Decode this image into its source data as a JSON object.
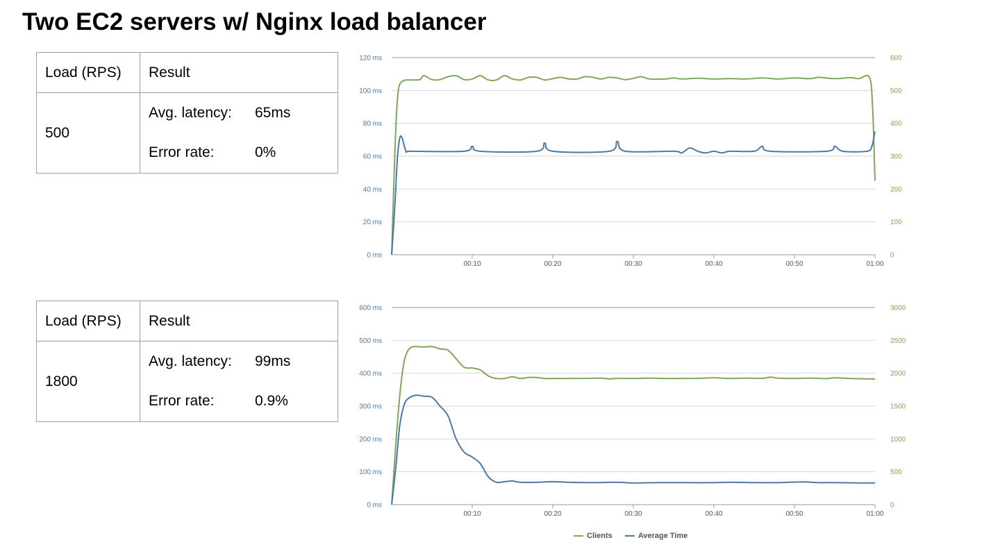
{
  "title": "Two EC2 servers w/ Nginx load balancer",
  "tables": [
    {
      "header_load": "Load (RPS)",
      "header_result": "Result",
      "load": "500",
      "latency_label": "Avg. latency:",
      "latency_value": "65ms",
      "error_label": "Error rate:",
      "error_value": "0%"
    },
    {
      "header_load": "Load (RPS)",
      "header_result": "Result",
      "load": "1800",
      "latency_label": "Avg. latency:",
      "latency_value": "99ms",
      "error_label": "Error rate:",
      "error_value": "0.9%"
    }
  ],
  "legend": [
    {
      "label": "Clients",
      "color": "#7fa65a"
    },
    {
      "label": "Average Time",
      "color": "#4a78a8"
    }
  ],
  "chart_data": [
    {
      "type": "line",
      "x_unit": "seconds",
      "x_ticks": [
        "00:10",
        "00:20",
        "00:30",
        "00:40",
        "00:50",
        "01:00"
      ],
      "xlim": [
        0,
        60
      ],
      "y_left": {
        "ticks": [
          "0 ms",
          "20 ms",
          "40 ms",
          "60 ms",
          "80 ms",
          "100 ms",
          "120 ms"
        ],
        "lim": [
          0,
          120
        ],
        "color": "#4a78a8"
      },
      "y_right": {
        "ticks": [
          "0",
          "100",
          "200",
          "300",
          "400",
          "500",
          "600"
        ],
        "lim": [
          0,
          600
        ],
        "color": "#7fa65a"
      },
      "grid": true,
      "legend": "bottom",
      "series": [
        {
          "name": "Clients",
          "axis": "right",
          "color": "#7fa65a",
          "points": [
            [
              0,
              0
            ],
            [
              0.3,
              240
            ],
            [
              0.6,
              430
            ],
            [
              0.9,
              510
            ],
            [
              1.5,
              530
            ],
            [
              2.5,
              532
            ],
            [
              3.5,
              533
            ],
            [
              4,
              545
            ],
            [
              5,
              533
            ],
            [
              6,
              533
            ],
            [
              7,
              542
            ],
            [
              8,
              545
            ],
            [
              9,
              533
            ],
            [
              10,
              535
            ],
            [
              11,
              545
            ],
            [
              12,
              532
            ],
            [
              13,
              532
            ],
            [
              14,
              545
            ],
            [
              15,
              535
            ],
            [
              16,
              532
            ],
            [
              17,
              540
            ],
            [
              18,
              540
            ],
            [
              19,
              532
            ],
            [
              20,
              536
            ],
            [
              21,
              540
            ],
            [
              22,
              535
            ],
            [
              23,
              535
            ],
            [
              24,
              542
            ],
            [
              25,
              540
            ],
            [
              26,
              535
            ],
            [
              27,
              540
            ],
            [
              28,
              538
            ],
            [
              29,
              533
            ],
            [
              30,
              537
            ],
            [
              31,
              542
            ],
            [
              32,
              535
            ],
            [
              34,
              535
            ],
            [
              35,
              538
            ],
            [
              36,
              535
            ],
            [
              38,
              537
            ],
            [
              40,
              535
            ],
            [
              42,
              536
            ],
            [
              44,
              535
            ],
            [
              46,
              538
            ],
            [
              48,
              535
            ],
            [
              50,
              538
            ],
            [
              52,
              536
            ],
            [
              53,
              540
            ],
            [
              55,
              536
            ],
            [
              57,
              539
            ],
            [
              58,
              536
            ],
            [
              59.3,
              540
            ],
            [
              59.7,
              450
            ],
            [
              60,
              225
            ]
          ]
        },
        {
          "name": "Average Time",
          "axis": "left",
          "color": "#4a78a8",
          "points": [
            [
              0,
              0
            ],
            [
              0.4,
              30
            ],
            [
              0.7,
              58
            ],
            [
              1,
              71
            ],
            [
              1.3,
              71
            ],
            [
              1.8,
              63
            ],
            [
              2.5,
              63
            ],
            [
              9,
              63
            ],
            [
              10,
              66
            ],
            [
              11,
              63
            ],
            [
              18,
              63
            ],
            [
              19,
              68
            ],
            [
              20,
              63
            ],
            [
              27,
              63
            ],
            [
              28,
              69
            ],
            [
              29,
              63
            ],
            [
              35,
              63
            ],
            [
              36,
              62
            ],
            [
              37,
              65
            ],
            [
              38,
              63
            ],
            [
              39,
              62
            ],
            [
              40,
              63
            ],
            [
              41,
              62
            ],
            [
              42,
              63
            ],
            [
              45,
              63
            ],
            [
              46,
              66
            ],
            [
              47,
              63
            ],
            [
              54,
              63
            ],
            [
              55,
              66
            ],
            [
              56,
              63
            ],
            [
              59,
              63
            ],
            [
              59.6,
              66
            ],
            [
              60,
              75
            ]
          ]
        }
      ]
    },
    {
      "type": "line",
      "x_unit": "seconds",
      "x_ticks": [
        "00:10",
        "00:20",
        "00:30",
        "00:40",
        "00:50",
        "01:00"
      ],
      "xlim": [
        0,
        60
      ],
      "y_left": {
        "ticks": [
          "0 ms",
          "100 ms",
          "200 ms",
          "300 ms",
          "400 ms",
          "500 ms",
          "600 ms"
        ],
        "lim": [
          0,
          600
        ],
        "color": "#4a78a8"
      },
      "y_right": {
        "ticks": [
          "0",
          "500",
          "1000",
          "1500",
          "2000",
          "2500",
          "3000"
        ],
        "lim": [
          0,
          3000
        ],
        "color": "#7fa65a"
      },
      "grid": true,
      "legend": "bottom",
      "series": [
        {
          "name": "Clients",
          "axis": "right",
          "color": "#7fa65a",
          "points": [
            [
              0,
              0
            ],
            [
              0.5,
              900
            ],
            [
              1,
              1650
            ],
            [
              1.5,
              2150
            ],
            [
              2,
              2340
            ],
            [
              2.5,
              2400
            ],
            [
              3,
              2405
            ],
            [
              4,
              2400
            ],
            [
              5,
              2405
            ],
            [
              6,
              2370
            ],
            [
              7,
              2350
            ],
            [
              8,
              2220
            ],
            [
              9,
              2090
            ],
            [
              10,
              2080
            ],
            [
              11,
              2050
            ],
            [
              12,
              1960
            ],
            [
              13,
              1920
            ],
            [
              14,
              1920
            ],
            [
              15,
              1945
            ],
            [
              16,
              1920
            ],
            [
              17,
              1935
            ],
            [
              18,
              1935
            ],
            [
              19,
              1920
            ],
            [
              20,
              1920
            ],
            [
              22,
              1920
            ],
            [
              24,
              1922
            ],
            [
              26,
              1925
            ],
            [
              27,
              1915
            ],
            [
              28,
              1922
            ],
            [
              30,
              1920
            ],
            [
              32,
              1925
            ],
            [
              34,
              1920
            ],
            [
              36,
              1920
            ],
            [
              38,
              1922
            ],
            [
              40,
              1930
            ],
            [
              42,
              1920
            ],
            [
              44,
              1925
            ],
            [
              46,
              1922
            ],
            [
              47,
              1940
            ],
            [
              48,
              1925
            ],
            [
              50,
              1920
            ],
            [
              52,
              1925
            ],
            [
              54,
              1918
            ],
            [
              55,
              1930
            ],
            [
              57,
              1920
            ],
            [
              60,
              1912
            ]
          ]
        },
        {
          "name": "Average Time",
          "axis": "left",
          "color": "#4a78a8",
          "points": [
            [
              0,
              0
            ],
            [
              0.5,
              110
            ],
            [
              1,
              240
            ],
            [
              1.5,
              300
            ],
            [
              2,
              322
            ],
            [
              3,
              333
            ],
            [
              4,
              330
            ],
            [
              5,
              327
            ],
            [
              6,
              300
            ],
            [
              7,
              270
            ],
            [
              8,
              200
            ],
            [
              9,
              160
            ],
            [
              10,
              145
            ],
            [
              11,
              125
            ],
            [
              12,
              85
            ],
            [
              13,
              68
            ],
            [
              14,
              70
            ],
            [
              15,
              72
            ],
            [
              16,
              68
            ],
            [
              18,
              68
            ],
            [
              20,
              70
            ],
            [
              22,
              68
            ],
            [
              25,
              67
            ],
            [
              28,
              68
            ],
            [
              30,
              66
            ],
            [
              33,
              67
            ],
            [
              36,
              67
            ],
            [
              40,
              67
            ],
            [
              42,
              68
            ],
            [
              45,
              67
            ],
            [
              48,
              67
            ],
            [
              51,
              69
            ],
            [
              53,
              67
            ],
            [
              55,
              67
            ],
            [
              58,
              66
            ],
            [
              60,
              66
            ]
          ]
        }
      ]
    }
  ]
}
